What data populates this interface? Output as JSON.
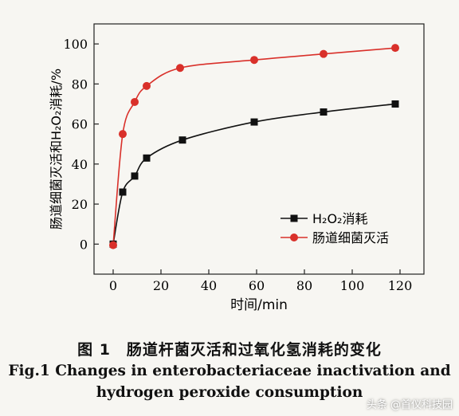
{
  "chart_data": {
    "type": "line",
    "xlabel": "时间/min",
    "ylabel": "肠道细菌灭活和H₂O₂消耗/%",
    "xlim": [
      -8,
      130
    ],
    "ylim": [
      -15,
      110
    ],
    "x_ticks": [
      0,
      20,
      40,
      60,
      80,
      100,
      120
    ],
    "y_ticks": [
      0,
      20,
      40,
      60,
      80,
      100
    ],
    "grid": false,
    "legend_position": "lower-right",
    "series": [
      {
        "name": "H₂O₂消耗",
        "marker": "square",
        "color": "#111111",
        "x": [
          0,
          4,
          9,
          14,
          29,
          59,
          88,
          118
        ],
        "y": [
          0,
          26,
          34,
          43,
          52,
          61,
          66,
          70
        ]
      },
      {
        "name": "肠道细菌灭活",
        "marker": "circle",
        "color": "#d9302a",
        "x": [
          0,
          4,
          9,
          14,
          28,
          59,
          88,
          118
        ],
        "y": [
          -0.5,
          55,
          71,
          79,
          88,
          92,
          95,
          98
        ]
      }
    ]
  },
  "caption": {
    "cn": "图 1　肠道杆菌灭活和过氧化氢消耗的变化",
    "en_line1": "Fig.1 Changes in enterobacteriaceae inactivation and",
    "en_line2": "hydrogen peroxide consumption"
  },
  "watermark": "头条 @首仪科技园"
}
